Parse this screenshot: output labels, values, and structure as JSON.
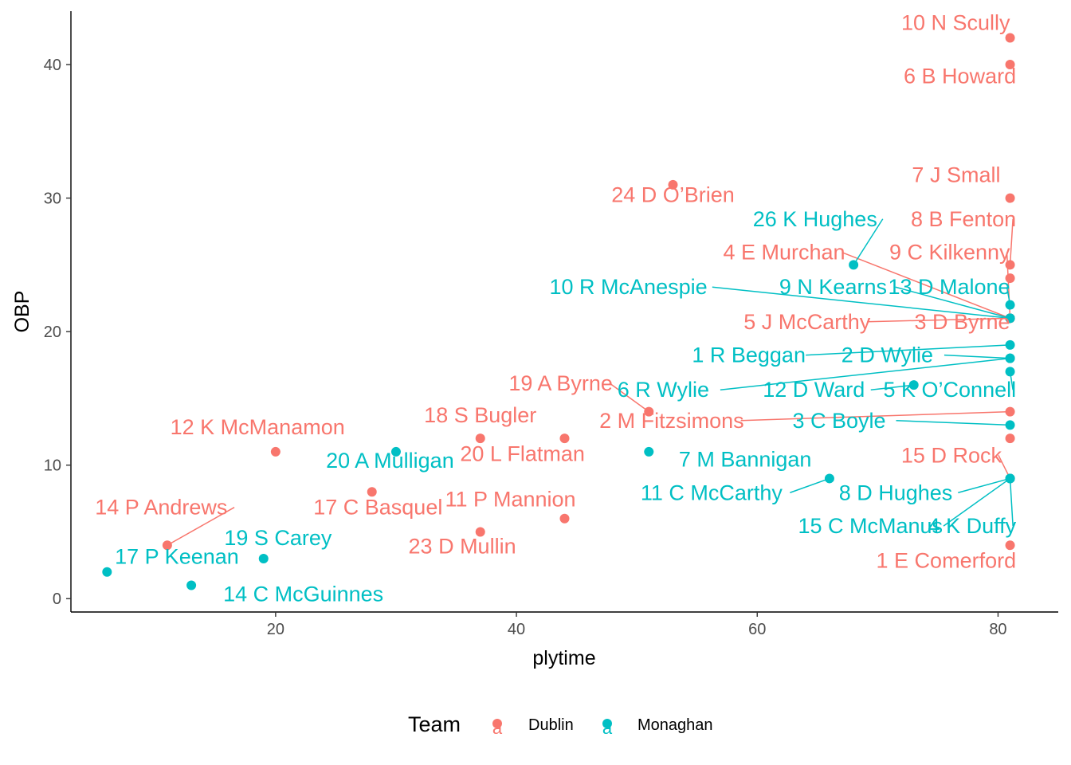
{
  "chart_data": {
    "type": "scatter",
    "xlabel": "plytime",
    "ylabel": "OBP",
    "xlim": [
      3,
      85
    ],
    "ylim": [
      -1,
      44
    ],
    "x_ticks": [
      20,
      40,
      60,
      80
    ],
    "y_ticks": [
      0,
      10,
      20,
      30,
      40
    ],
    "grid": false,
    "legend": {
      "title": "Team",
      "position": "bottom",
      "key_glyph": "a",
      "entries": [
        {
          "name": "Dublin",
          "color": "#F8766D"
        },
        {
          "name": "Monaghan",
          "color": "#00BFC4"
        }
      ]
    },
    "series": [
      {
        "name": "Dublin",
        "color": "#F8766D",
        "points": [
          {
            "x": 81,
            "y": 42,
            "label": "10  N Scully",
            "lx": 81,
            "ly": 42.6,
            "anchor": "end",
            "leader": false
          },
          {
            "x": 81,
            "y": 40,
            "label": "6  B Howard",
            "lx": 81.5,
            "ly": 38.6,
            "anchor": "end",
            "leader": false
          },
          {
            "x": 53,
            "y": 31,
            "label": "24  D O’Brien",
            "lx": 53,
            "ly": 29.7,
            "anchor": "middle",
            "leader": false
          },
          {
            "x": 81,
            "y": 30,
            "label": "7  J Small",
            "lx": 80.2,
            "ly": 31.2,
            "anchor": "end",
            "leader": false
          },
          {
            "x": 81,
            "y": 25,
            "label": "8  B Fenton",
            "lx": 81.5,
            "ly": 27.9,
            "anchor": "end",
            "leader": true
          },
          {
            "x": 81,
            "y": 24,
            "label": "",
            "lx": 81,
            "ly": 24,
            "anchor": "end",
            "leader": false
          },
          {
            "x": 81,
            "y": 21,
            "label": "4  E Murchan",
            "lx": 67.3,
            "ly": 25.4,
            "anchor": "end",
            "leader": true
          },
          {
            "x": 81,
            "y": 21,
            "label": "9  C Kilkenny",
            "lx": 81,
            "ly": 25.4,
            "anchor": "end",
            "leader": true
          },
          {
            "x": 81,
            "y": 21,
            "label": "5  J McCarthy",
            "lx": 69.4,
            "ly": 20.2,
            "anchor": "end",
            "leader": true
          },
          {
            "x": 81,
            "y": 21,
            "label": "3  D Byrne",
            "lx": 81,
            "ly": 20.2,
            "anchor": "end",
            "leader": true
          },
          {
            "x": 51,
            "y": 14,
            "label": "19 A Byrne",
            "lx": 48,
            "ly": 15.6,
            "anchor": "end",
            "leader": true
          },
          {
            "x": 81,
            "y": 14,
            "label": "2  M Fitzsimons",
            "lx": 58.9,
            "ly": 12.8,
            "anchor": "end",
            "leader": true
          },
          {
            "x": 37,
            "y": 12,
            "label": "18  S Bugler",
            "lx": 37,
            "ly": 13.2,
            "anchor": "middle",
            "leader": false
          },
          {
            "x": 44,
            "y": 12,
            "label": "20  L Flatman",
            "lx": 40.5,
            "ly": 10.3,
            "anchor": "middle",
            "leader": false
          },
          {
            "x": 81,
            "y": 12,
            "label": "",
            "lx": 81,
            "ly": 12,
            "anchor": "end",
            "leader": false
          },
          {
            "x": 20,
            "y": 11,
            "label": "12  K McManamon",
            "lx": 18.5,
            "ly": 12.3,
            "anchor": "middle",
            "leader": false
          },
          {
            "x": 81,
            "y": 9,
            "label": "15  D Rock",
            "lx": 80.3,
            "ly": 10.2,
            "anchor": "end",
            "leader": true
          },
          {
            "x": 28,
            "y": 8,
            "label": "17  C Basquel",
            "lx": 28.5,
            "ly": 6.3,
            "anchor": "middle",
            "leader": false
          },
          {
            "x": 44,
            "y": 6,
            "label": "11  P Mannion",
            "lx": 39.5,
            "ly": 6.9,
            "anchor": "middle",
            "leader": false
          },
          {
            "x": 37,
            "y": 5,
            "label": "23  D Mullin",
            "lx": 35.5,
            "ly": 3.4,
            "anchor": "middle",
            "leader": false
          },
          {
            "x": 11,
            "y": 4,
            "label": "14  P Andrews",
            "lx": 10.5,
            "ly": 6.3,
            "anchor": "middle",
            "leader": true
          },
          {
            "x": 81,
            "y": 4,
            "label": "1 E Comerford",
            "lx": 81.5,
            "ly": 2.3,
            "anchor": "end",
            "leader": false
          }
        ]
      },
      {
        "name": "Monaghan",
        "color": "#00BFC4",
        "points": [
          {
            "x": 68,
            "y": 25,
            "label": "26  K Hughes",
            "lx": 64.8,
            "ly": 27.9,
            "anchor": "middle",
            "leader": true
          },
          {
            "x": 81,
            "y": 22,
            "label": "13  D Malone",
            "lx": 81,
            "ly": 22.8,
            "anchor": "end",
            "leader": true
          },
          {
            "x": 81,
            "y": 21,
            "label": "10  R McAnespie",
            "lx": 49.3,
            "ly": 22.8,
            "anchor": "middle",
            "leader": true
          },
          {
            "x": 81,
            "y": 21,
            "label": "9  N Kearns",
            "lx": 66.3,
            "ly": 22.8,
            "anchor": "middle",
            "leader": true
          },
          {
            "x": 81,
            "y": 19,
            "label": "1 R Beggan",
            "lx": 59.3,
            "ly": 17.7,
            "anchor": "middle",
            "leader": true
          },
          {
            "x": 81,
            "y": 18,
            "label": "2  D Wylie",
            "lx": 70.8,
            "ly": 17.7,
            "anchor": "middle",
            "leader": true
          },
          {
            "x": 81,
            "y": 18,
            "label": "6  R Wylie",
            "lx": 52.2,
            "ly": 15.1,
            "anchor": "middle",
            "leader": true
          },
          {
            "x": 81,
            "y": 17,
            "label": "5  K O’Connell",
            "lx": 81.5,
            "ly": 15.1,
            "anchor": "end",
            "leader": true
          },
          {
            "x": 73,
            "y": 16,
            "label": "12  D Ward",
            "lx": 64.7,
            "ly": 15.1,
            "anchor": "middle",
            "leader": true
          },
          {
            "x": 81,
            "y": 13,
            "label": "3  C Boyle",
            "lx": 66.8,
            "ly": 12.8,
            "anchor": "middle",
            "leader": true
          },
          {
            "x": 30,
            "y": 11,
            "label": "20 A Mulligan",
            "lx": 29.5,
            "ly": 9.8,
            "anchor": "middle",
            "leader": false
          },
          {
            "x": 51,
            "y": 11,
            "label": "7  M Bannigan",
            "lx": 59,
            "ly": 9.9,
            "anchor": "middle",
            "leader": false
          },
          {
            "x": 66,
            "y": 9,
            "label": "11  C McCarthy",
            "lx": 56.2,
            "ly": 7.4,
            "anchor": "middle",
            "leader": true
          },
          {
            "x": 81,
            "y": 9,
            "label": "8  D Hughes",
            "lx": 71.5,
            "ly": 7.4,
            "anchor": "middle",
            "leader": true
          },
          {
            "x": 81,
            "y": 9,
            "label": "15  C McManus",
            "lx": 69.4,
            "ly": 4.9,
            "anchor": "middle",
            "leader": true
          },
          {
            "x": 81,
            "y": 9,
            "label": "4  K Duffy",
            "lx": 81.5,
            "ly": 4.9,
            "anchor": "end",
            "leader": true
          },
          {
            "x": 19,
            "y": 3,
            "label": "19  S Carey",
            "lx": 20.2,
            "ly": 4.0,
            "anchor": "middle",
            "leader": false
          },
          {
            "x": 6,
            "y": 2,
            "label": "17  P Keenan",
            "lx": 11.8,
            "ly": 2.6,
            "anchor": "middle",
            "leader": false
          },
          {
            "x": 13,
            "y": 1,
            "label": "14  C McGuinnes",
            "lx": 22.3,
            "ly": -0.2,
            "anchor": "middle",
            "leader": false
          }
        ]
      }
    ]
  }
}
